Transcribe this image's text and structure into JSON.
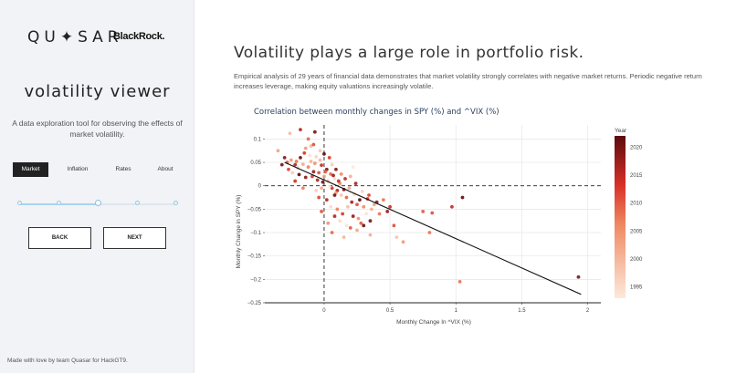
{
  "sidebar": {
    "logo_left": "QU✦SAR",
    "logo_right": "BlackRock.",
    "title": "volatility viewer",
    "description": "A data exploration tool for observing the effects of market volatility.",
    "tabs": [
      {
        "label": "Market",
        "active": true
      },
      {
        "label": "Inflation",
        "active": false
      },
      {
        "label": "Rates",
        "active": false
      },
      {
        "label": "About",
        "active": false
      }
    ],
    "slider": {
      "steps": 5,
      "current_step": 3
    },
    "back_label": "BACK",
    "next_label": "NEXT",
    "footer": "Made with love by team Quasar for HackGT9."
  },
  "main": {
    "title": "Volatility plays a large role in portfolio risk.",
    "description": "Empirical analysis of 29 years of financial data demonstrates that market volatility strongly correlates with negative market returns. Periodic negative return increases leverage, making equity valuations increasingly volatile."
  },
  "colors": {
    "accent_dark": "#222222",
    "scale_low": "#fde9dc",
    "scale_mid": "#e6553a",
    "scale_high": "#5c0a0e",
    "slider": "#a8d4ef"
  },
  "chart_data": {
    "type": "scatter",
    "title": "Correlation between monthly changes in SPY (%) and ^VIX (%)",
    "xlabel": "Monthly Change In ^VIX (%)",
    "ylabel": "Monthly Change in SPY (%)",
    "xlim": [
      -0.45,
      2.1
    ],
    "ylim": [
      -0.25,
      0.13
    ],
    "xticks": [
      0,
      0.5,
      1,
      1.5,
      2
    ],
    "xtick_labels": [
      "0",
      "0.5",
      "1",
      "1.5",
      "2"
    ],
    "yticks": [
      0.1,
      0.05,
      0,
      -0.05,
      -0.1,
      -0.15,
      -0.2,
      -0.25
    ],
    "ytick_labels": [
      "0.1",
      "0.05",
      "0",
      "−0.05",
      "−0.1",
      "−0.15",
      "−0.2",
      "−0.25"
    ],
    "colorbar_title": "Year",
    "colorbar_range": [
      1993,
      2022
    ],
    "colorbar_ticks": [
      2020,
      2015,
      2010,
      2005,
      2000,
      1995
    ],
    "trendline": {
      "x": [
        -0.3,
        1.95
      ],
      "y": [
        0.05,
        -0.232
      ]
    },
    "points": [
      {
        "x": -0.3,
        "y": 0.06,
        "year": 2019
      },
      {
        "x": -0.28,
        "y": 0.05,
        "year": 2010
      },
      {
        "x": -0.25,
        "y": 0.055,
        "year": 2004
      },
      {
        "x": -0.22,
        "y": 0.045,
        "year": 2016
      },
      {
        "x": -0.2,
        "y": 0.038,
        "year": 1998
      },
      {
        "x": -0.18,
        "y": 0.06,
        "year": 2021
      },
      {
        "x": -0.15,
        "y": 0.07,
        "year": 2013
      },
      {
        "x": -0.12,
        "y": 0.04,
        "year": 2007
      },
      {
        "x": -0.1,
        "y": 0.052,
        "year": 2001
      },
      {
        "x": -0.08,
        "y": 0.03,
        "year": 2018
      },
      {
        "x": -0.06,
        "y": 0.062,
        "year": 1996
      },
      {
        "x": -0.04,
        "y": 0.028,
        "year": 2011
      },
      {
        "x": -0.02,
        "y": 0.044,
        "year": 2015
      },
      {
        "x": 0.0,
        "y": 0.02,
        "year": 2003
      },
      {
        "x": 0.02,
        "y": 0.035,
        "year": 2020
      },
      {
        "x": 0.03,
        "y": 0.01,
        "year": 1999
      },
      {
        "x": 0.05,
        "y": 0.025,
        "year": 2009
      },
      {
        "x": 0.06,
        "y": -0.005,
        "year": 2014
      },
      {
        "x": 0.08,
        "y": 0.015,
        "year": 1995
      },
      {
        "x": 0.1,
        "y": -0.01,
        "year": 2017
      },
      {
        "x": 0.12,
        "y": 0.005,
        "year": 2006
      },
      {
        "x": -0.27,
        "y": 0.035,
        "year": 2012
      },
      {
        "x": -0.24,
        "y": 0.028,
        "year": 1997
      },
      {
        "x": -0.21,
        "y": 0.052,
        "year": 2008
      },
      {
        "x": -0.19,
        "y": 0.024,
        "year": 2022
      },
      {
        "x": -0.16,
        "y": 0.046,
        "year": 2002
      },
      {
        "x": -0.14,
        "y": 0.018,
        "year": 2019
      },
      {
        "x": -0.11,
        "y": 0.065,
        "year": 1994
      },
      {
        "x": -0.09,
        "y": 0.02,
        "year": 2013
      },
      {
        "x": -0.07,
        "y": 0.048,
        "year": 2005
      },
      {
        "x": -0.05,
        "y": 0.012,
        "year": 2016
      },
      {
        "x": -0.03,
        "y": 0.055,
        "year": 2000
      },
      {
        "x": -0.01,
        "y": 0.008,
        "year": 2021
      },
      {
        "x": 0.01,
        "y": 0.03,
        "year": 2010
      },
      {
        "x": 0.04,
        "y": -0.002,
        "year": 1993
      },
      {
        "x": 0.07,
        "y": 0.022,
        "year": 2018
      },
      {
        "x": 0.09,
        "y": -0.015,
        "year": 2004
      },
      {
        "x": 0.11,
        "y": 0.01,
        "year": 2015
      },
      {
        "x": 0.13,
        "y": -0.02,
        "year": 1998
      },
      {
        "x": 0.15,
        "y": -0.008,
        "year": 2020
      },
      {
        "x": 0.17,
        "y": -0.025,
        "year": 2009
      },
      {
        "x": 0.19,
        "y": -0.005,
        "year": 2003
      },
      {
        "x": 0.21,
        "y": -0.035,
        "year": 2017
      },
      {
        "x": 0.23,
        "y": -0.018,
        "year": 1996
      },
      {
        "x": 0.25,
        "y": -0.04,
        "year": 2011
      },
      {
        "x": 0.27,
        "y": -0.03,
        "year": 2022
      },
      {
        "x": 0.3,
        "y": -0.045,
        "year": 2006
      },
      {
        "x": 0.33,
        "y": -0.028,
        "year": 2014
      },
      {
        "x": 0.36,
        "y": -0.05,
        "year": 2001
      },
      {
        "x": 0.4,
        "y": -0.035,
        "year": 2019
      },
      {
        "x": 0.42,
        "y": -0.06,
        "year": 2008
      },
      {
        "x": -0.06,
        "y": -0.01,
        "year": 1997
      },
      {
        "x": -0.04,
        "y": -0.025,
        "year": 2012
      },
      {
        "x": -0.02,
        "y": -0.005,
        "year": 2002
      },
      {
        "x": 0.02,
        "y": -0.03,
        "year": 2016
      },
      {
        "x": 0.05,
        "y": -0.045,
        "year": 1995
      },
      {
        "x": 0.08,
        "y": -0.02,
        "year": 2021
      },
      {
        "x": 0.1,
        "y": -0.05,
        "year": 2007
      },
      {
        "x": 0.14,
        "y": -0.06,
        "year": 2013
      },
      {
        "x": 0.18,
        "y": -0.045,
        "year": 1999
      },
      {
        "x": 0.22,
        "y": -0.065,
        "year": 2018
      },
      {
        "x": 0.26,
        "y": -0.07,
        "year": 2005
      },
      {
        "x": 0.28,
        "y": -0.08,
        "year": 2010
      },
      {
        "x": 0.32,
        "y": -0.06,
        "year": 1994
      },
      {
        "x": 0.35,
        "y": -0.075,
        "year": 2020
      },
      {
        "x": -0.1,
        "y": 0.085,
        "year": 2000
      },
      {
        "x": -0.12,
        "y": 0.1,
        "year": 2009
      },
      {
        "x": -0.07,
        "y": 0.115,
        "year": 2020
      },
      {
        "x": -0.18,
        "y": 0.12,
        "year": 2016
      },
      {
        "x": -0.26,
        "y": 0.112,
        "year": 1999
      },
      {
        "x": -0.03,
        "y": 0.075,
        "year": 1998
      },
      {
        "x": -0.08,
        "y": 0.088,
        "year": 2011
      },
      {
        "x": -0.14,
        "y": 0.08,
        "year": 2004
      },
      {
        "x": 0.0,
        "y": 0.068,
        "year": 2022
      },
      {
        "x": 0.04,
        "y": 0.06,
        "year": 2013
      },
      {
        "x": 0.06,
        "y": 0.045,
        "year": 1997
      },
      {
        "x": 0.09,
        "y": 0.035,
        "year": 2019
      },
      {
        "x": 0.13,
        "y": 0.025,
        "year": 2006
      },
      {
        "x": 0.16,
        "y": 0.015,
        "year": 2015
      },
      {
        "x": 0.2,
        "y": 0.02,
        "year": 2001
      },
      {
        "x": 0.24,
        "y": 0.005,
        "year": 2017
      },
      {
        "x": 0.29,
        "y": -0.012,
        "year": 1996
      },
      {
        "x": 0.34,
        "y": -0.02,
        "year": 2012
      },
      {
        "x": 0.38,
        "y": -0.04,
        "year": 2003
      },
      {
        "x": 0.45,
        "y": -0.03,
        "year": 2008
      },
      {
        "x": 0.48,
        "y": -0.055,
        "year": 2018
      },
      {
        "x": 0.5,
        "y": -0.045,
        "year": 2014
      },
      {
        "x": 0.2,
        "y": -0.09,
        "year": 2010
      },
      {
        "x": 0.25,
        "y": -0.095,
        "year": 2002
      },
      {
        "x": 0.3,
        "y": -0.085,
        "year": 2021
      },
      {
        "x": 0.12,
        "y": -0.075,
        "year": 1995
      },
      {
        "x": 0.08,
        "y": -0.065,
        "year": 2016
      },
      {
        "x": 0.03,
        "y": -0.08,
        "year": 2005
      },
      {
        "x": -0.02,
        "y": -0.055,
        "year": 2011
      },
      {
        "x": 0.06,
        "y": -0.1,
        "year": 2009
      },
      {
        "x": 0.15,
        "y": -0.11,
        "year": 2000
      },
      {
        "x": 0.22,
        "y": 0.04,
        "year": 1993
      },
      {
        "x": -0.22,
        "y": 0.01,
        "year": 2014
      },
      {
        "x": -0.16,
        "y": -0.005,
        "year": 2007
      },
      {
        "x": -0.35,
        "y": 0.075,
        "year": 2003
      },
      {
        "x": -0.32,
        "y": 0.045,
        "year": 2020
      },
      {
        "x": 0.17,
        "y": -0.085,
        "year": 1994
      },
      {
        "x": 0.35,
        "y": -0.105,
        "year": 2001
      },
      {
        "x": 0.55,
        "y": -0.11,
        "year": 1998
      },
      {
        "x": 0.6,
        "y": -0.12,
        "year": 2004
      },
      {
        "x": 0.75,
        "y": -0.055,
        "year": 2010
      },
      {
        "x": 0.8,
        "y": -0.1,
        "year": 2008
      },
      {
        "x": 0.82,
        "y": -0.058,
        "year": 2011
      },
      {
        "x": 0.97,
        "y": -0.045,
        "year": 2015
      },
      {
        "x": 1.03,
        "y": -0.205,
        "year": 2008
      },
      {
        "x": 1.05,
        "y": -0.025,
        "year": 2022
      },
      {
        "x": 1.93,
        "y": -0.195,
        "year": 2020
      },
      {
        "x": 0.53,
        "y": -0.085,
        "year": 2011
      }
    ]
  }
}
